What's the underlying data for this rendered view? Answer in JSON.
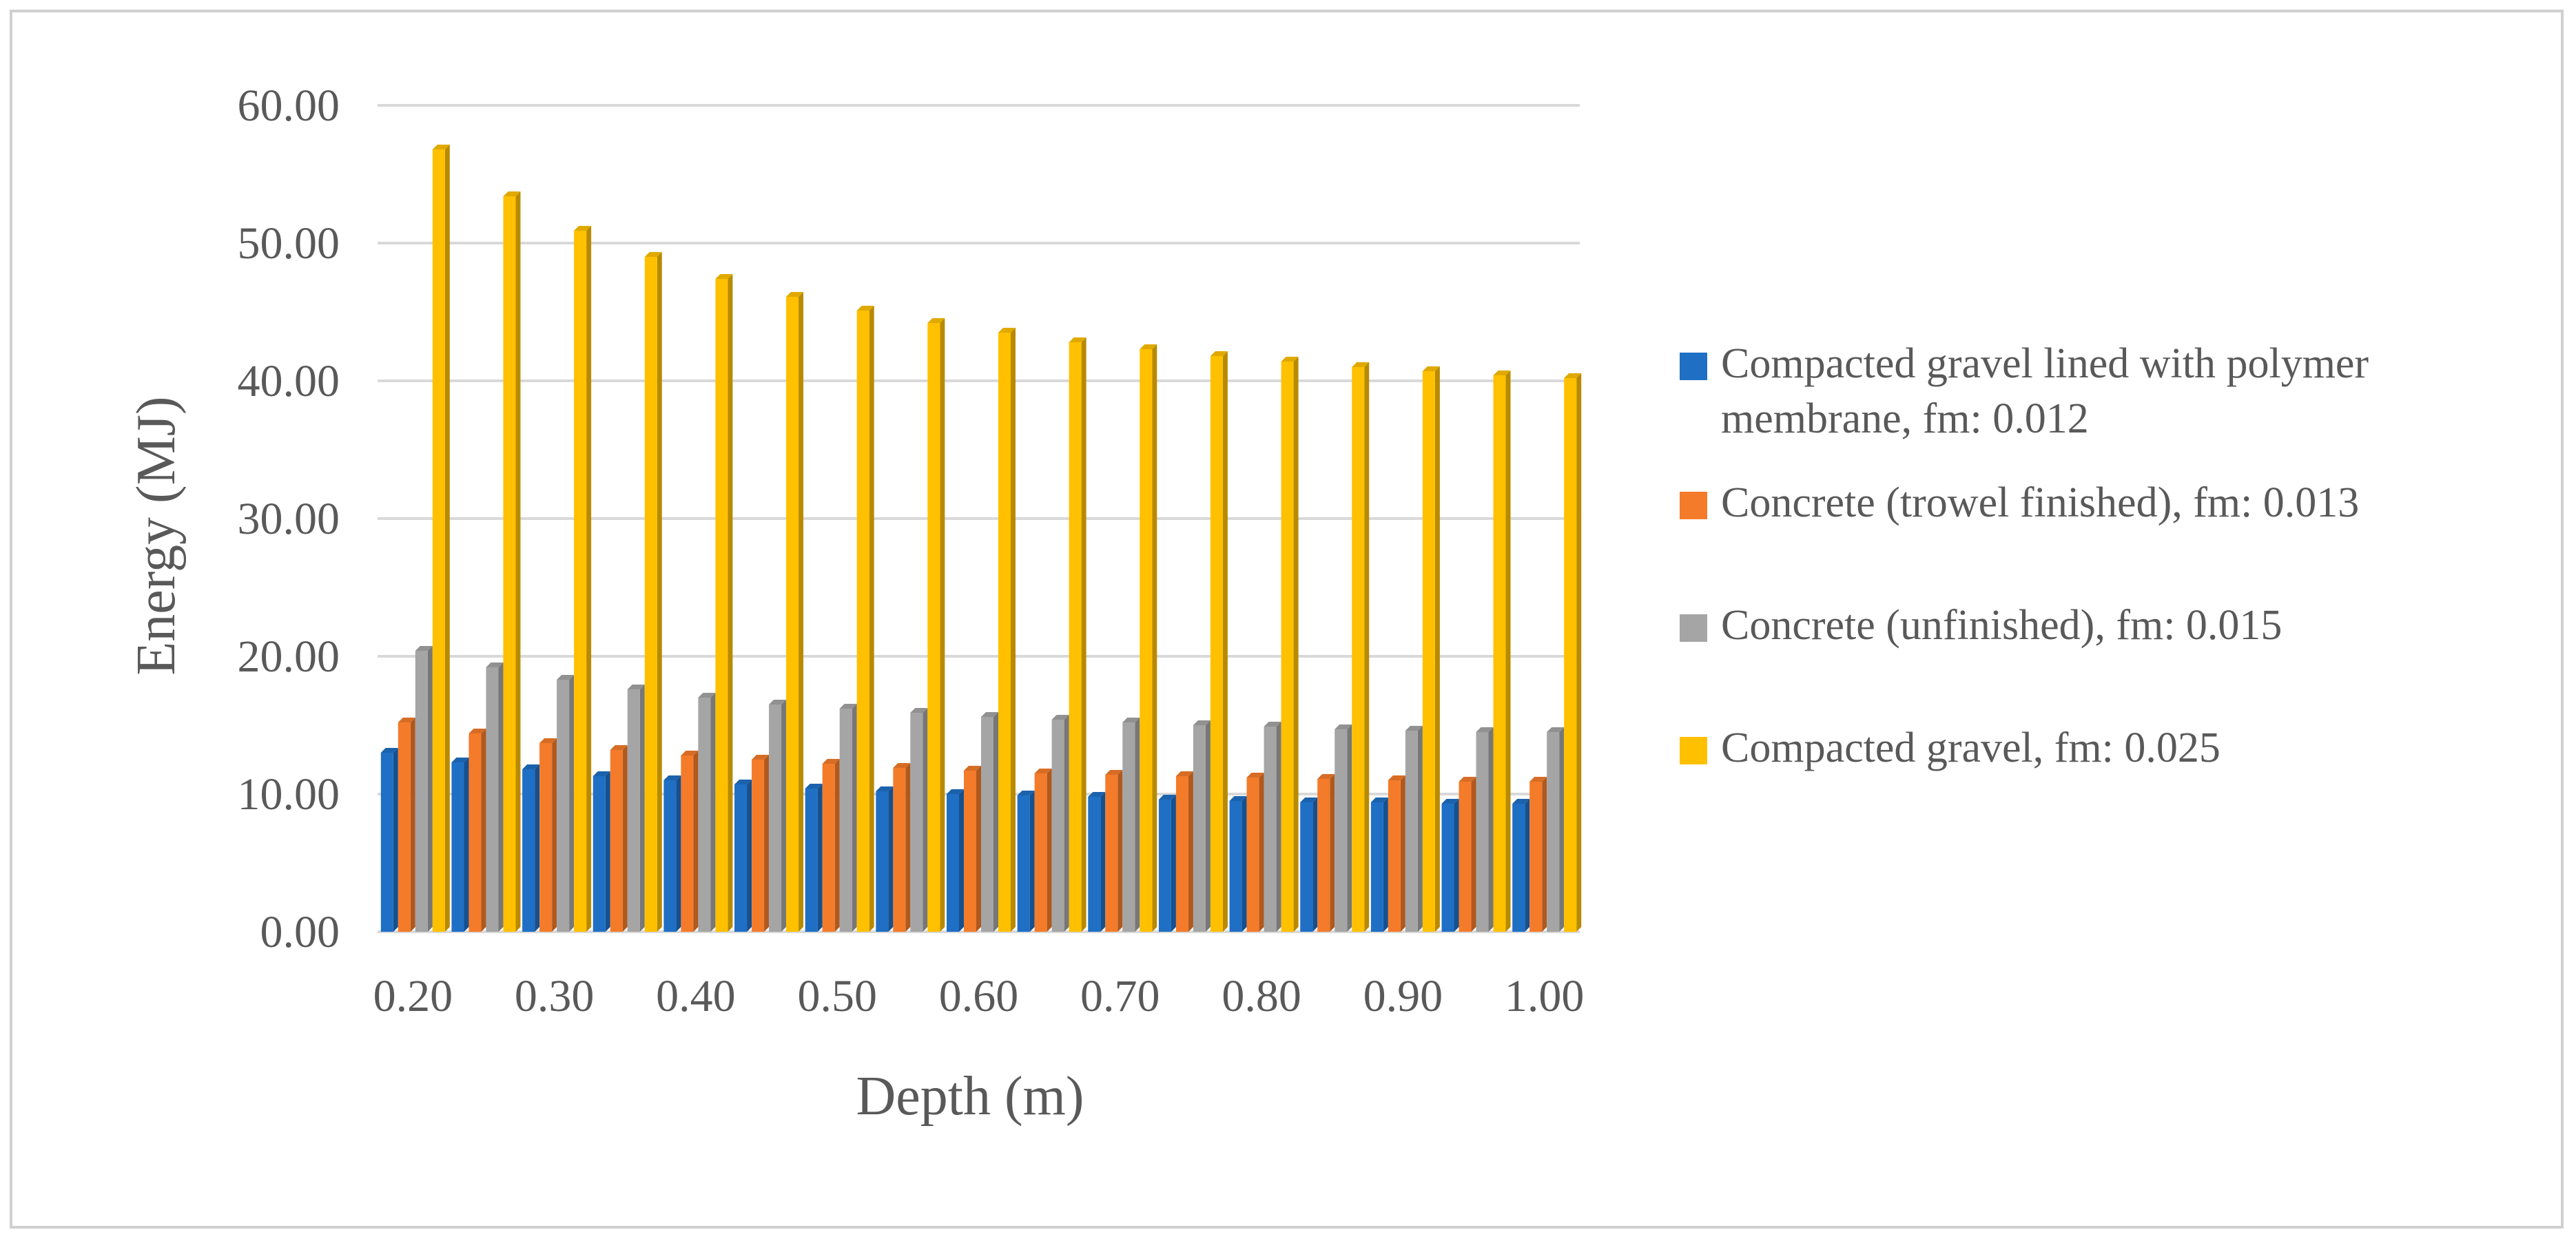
{
  "chart_data": {
    "type": "bar",
    "title": "",
    "xlabel": "Depth (m)",
    "ylabel": "Energy (MJ)",
    "ylim": [
      0,
      60
    ],
    "yticks": [
      "0.00",
      "10.00",
      "20.00",
      "30.00",
      "40.00",
      "50.00",
      "60.00"
    ],
    "categories": [
      "0.20",
      "0.25",
      "0.30",
      "0.35",
      "0.40",
      "0.45",
      "0.50",
      "0.55",
      "0.60",
      "0.65",
      "0.70",
      "0.75",
      "0.80",
      "0.85",
      "0.90",
      "0.95",
      "1.00"
    ],
    "x_tick_labels": [
      "0.20",
      "",
      "0.30",
      "",
      "0.40",
      "",
      "0.50",
      "",
      "0.60",
      "",
      "0.70",
      "",
      "0.80",
      "",
      "0.90",
      "",
      "1.00"
    ],
    "grid": true,
    "legend_position": "right",
    "series": [
      {
        "name": "Compacted gravel lined with polymer membrane, fm: 0.012",
        "color": "#1f6fc5",
        "values": [
          13.0,
          12.3,
          11.8,
          11.3,
          11.0,
          10.7,
          10.4,
          10.2,
          10.0,
          9.9,
          9.8,
          9.6,
          9.5,
          9.4,
          9.4,
          9.3,
          9.3
        ]
      },
      {
        "name": "Concrete (trowel finished), fm: 0.013",
        "color": "#f47b2a",
        "values": [
          15.2,
          14.4,
          13.7,
          13.2,
          12.8,
          12.5,
          12.2,
          11.9,
          11.7,
          11.5,
          11.4,
          11.3,
          11.2,
          11.1,
          11.0,
          10.9,
          10.9
        ]
      },
      {
        "name": "Concrete (unfinished), fm: 0.015",
        "color": "#a5a5a5",
        "values": [
          20.4,
          19.2,
          18.3,
          17.6,
          17.0,
          16.5,
          16.2,
          15.9,
          15.6,
          15.4,
          15.2,
          15.0,
          14.9,
          14.7,
          14.6,
          14.5,
          14.5
        ]
      },
      {
        "name": "Compacted gravel, fm: 0.025",
        "color": "#ffc000",
        "values": [
          56.8,
          53.4,
          50.9,
          49.0,
          47.4,
          46.1,
          45.1,
          44.2,
          43.5,
          42.8,
          42.3,
          41.8,
          41.4,
          41.0,
          40.7,
          40.4,
          40.2
        ]
      }
    ]
  }
}
